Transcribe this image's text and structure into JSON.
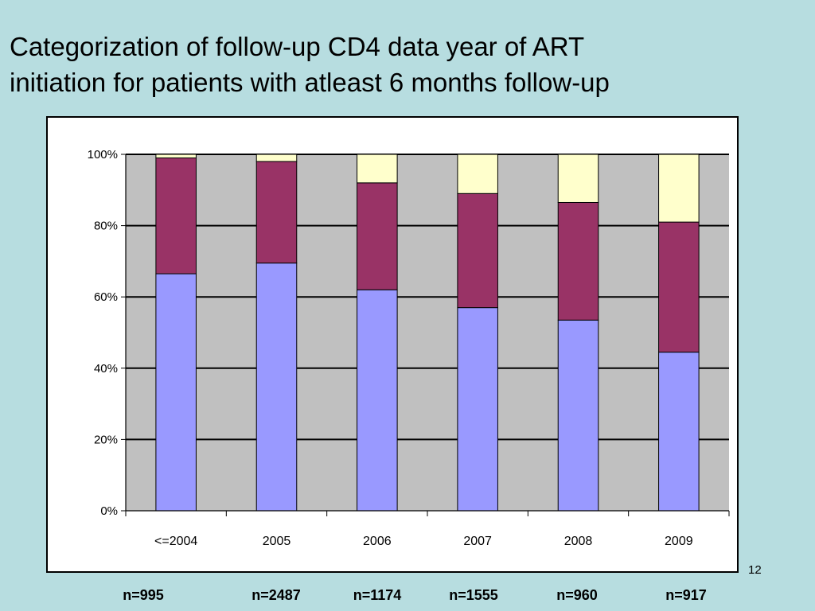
{
  "title_lines": [
    "Categorization of follow-up CD4 data year of ART",
    "initiation for patients with atleast 6 months follow-up"
  ],
  "slide_number": "12",
  "n_labels": [
    "n=995",
    "n=2487",
    "n=1174",
    "n=1555",
    "n=960",
    "n=917"
  ],
  "chart_data": {
    "type": "bar",
    "stacked": "percent",
    "categories": [
      "<=2004",
      "2005",
      "2006",
      "2007",
      "2008",
      "2009"
    ],
    "series": [
      {
        "values": [
          66.5,
          69.5,
          62,
          57,
          53.5,
          44.5
        ],
        "color": "#9999ff"
      },
      {
        "values": [
          32.5,
          28.5,
          30,
          32,
          33,
          36.5
        ],
        "color": "#993366"
      },
      {
        "values": [
          1,
          2,
          8,
          11,
          13.5,
          19
        ],
        "color": "#ffffcc"
      }
    ],
    "ylim": [
      0,
      100
    ],
    "yticks": [
      "0%",
      "20%",
      "40%",
      "60%",
      "80%",
      "100%"
    ],
    "ytick_values": [
      0,
      20,
      40,
      60,
      80,
      100
    ],
    "grid": true,
    "plot_background": "#c0c0c0",
    "legend": "none"
  }
}
